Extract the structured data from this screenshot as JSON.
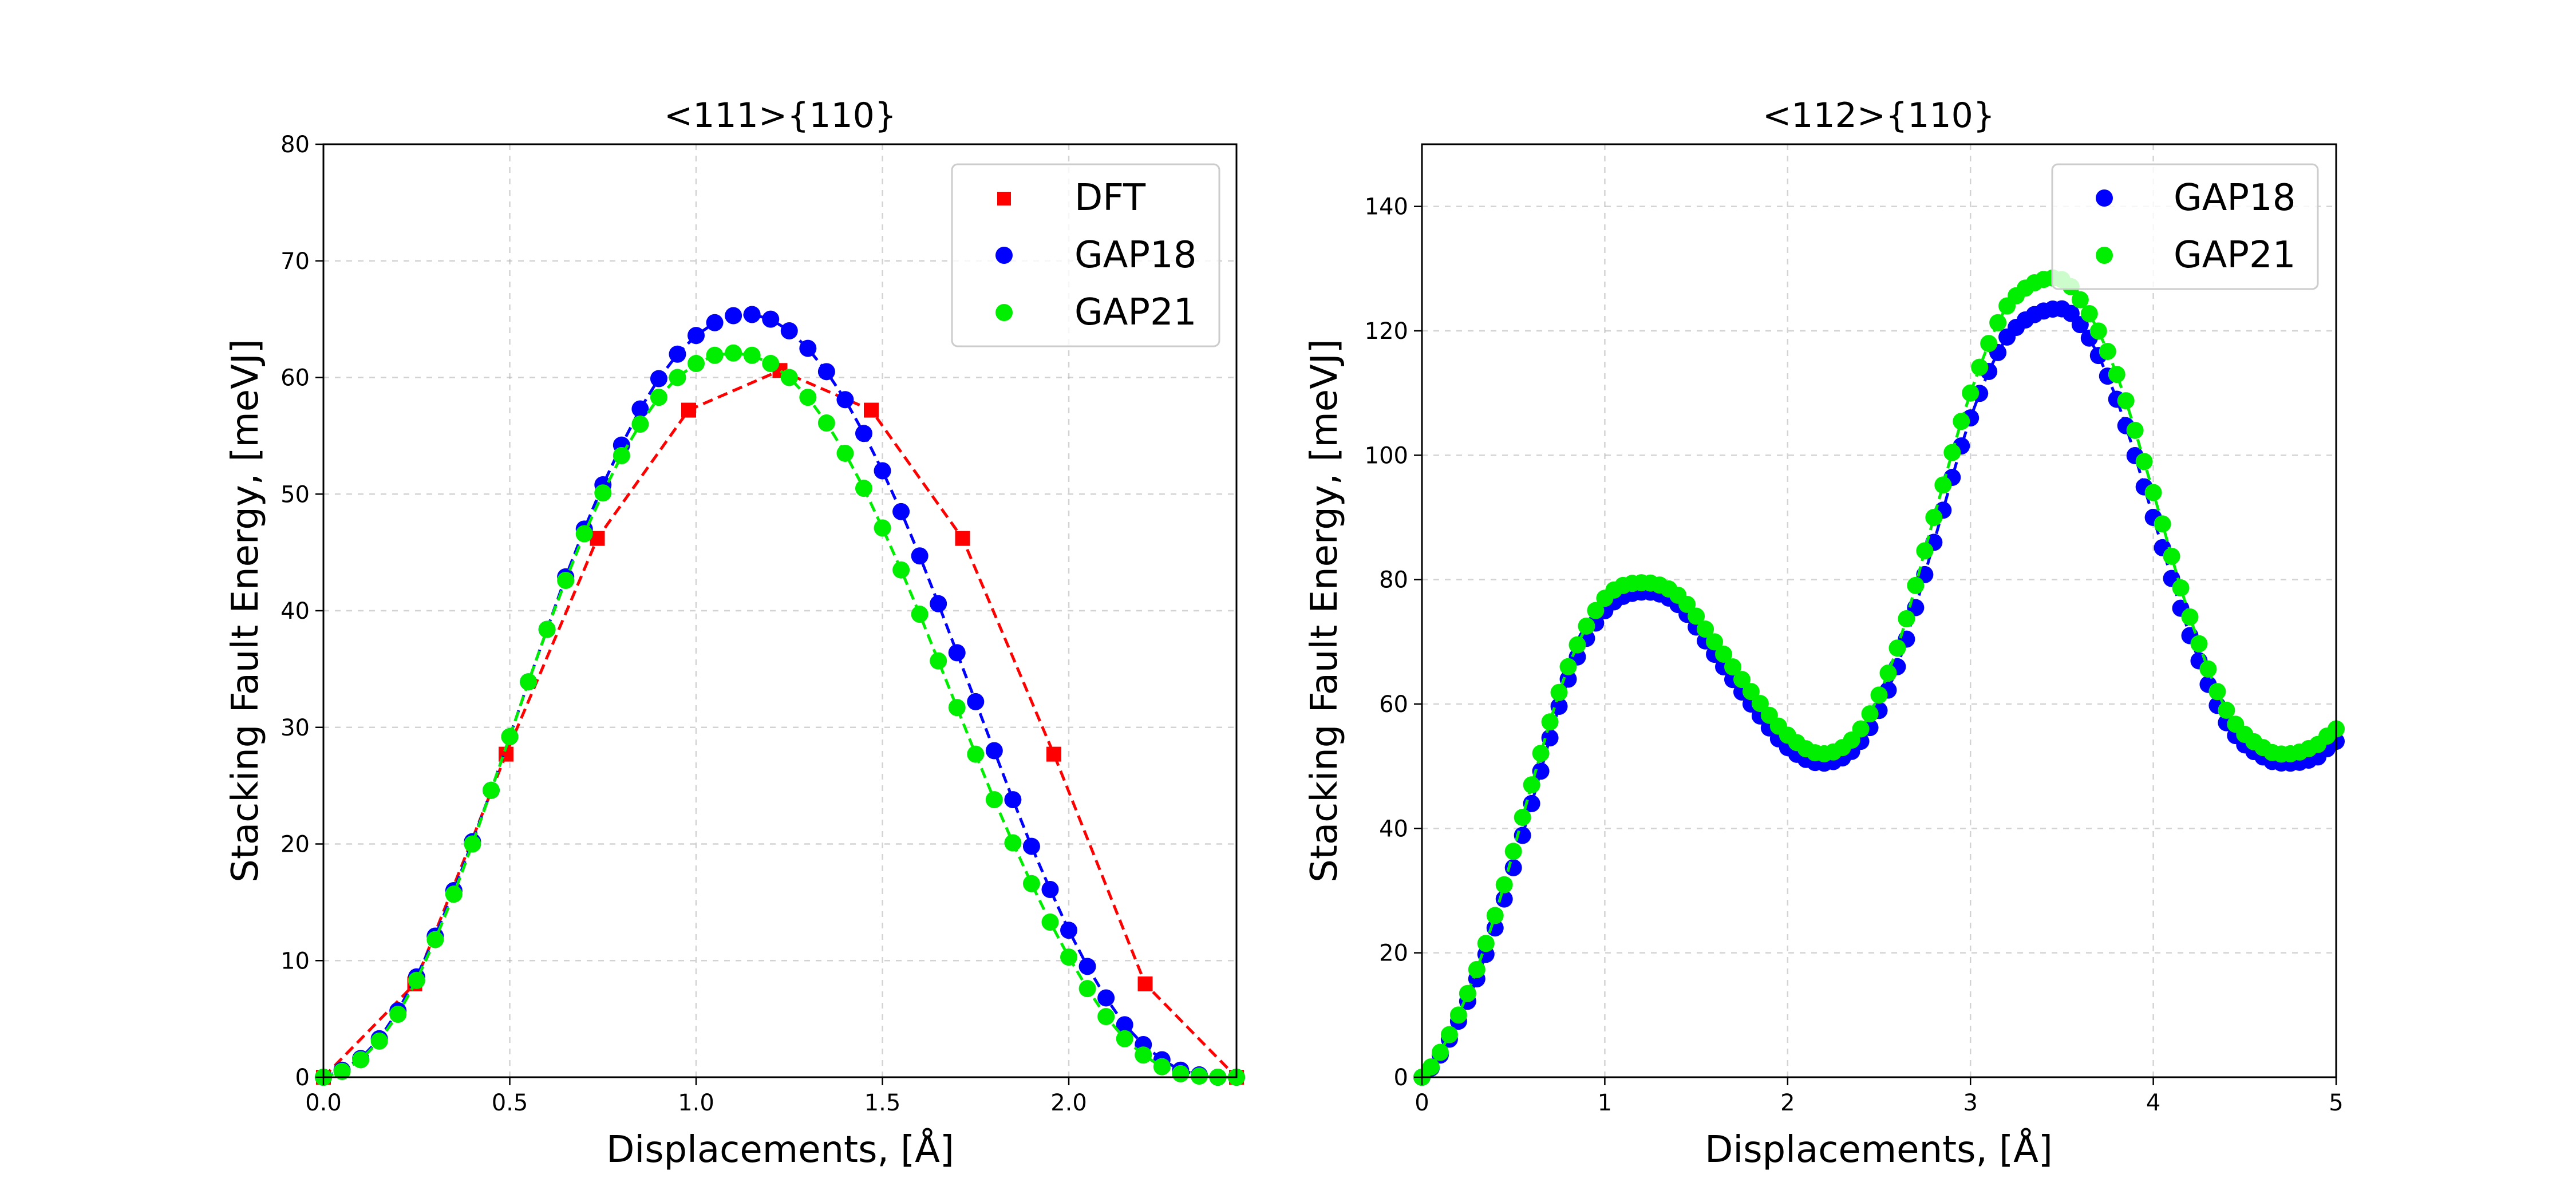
{
  "chart_data": [
    {
      "type": "line",
      "title": "<111>{110}",
      "xlabel": "Displacements, [Å]",
      "ylabel": "Stacking Fault Energy, [meVJ]",
      "xlim": [
        0,
        2.45
      ],
      "ylim": [
        0,
        80
      ],
      "xticks": [
        "0.0",
        "0.5",
        "1.0",
        "1.5",
        "2.0"
      ],
      "xtick_values": [
        0,
        0.5,
        1.0,
        1.5,
        2.0
      ],
      "yticks": [
        "0",
        "10",
        "20",
        "30",
        "40",
        "50",
        "60",
        "70",
        "80"
      ],
      "ytick_values": [
        0,
        10,
        20,
        30,
        40,
        50,
        60,
        70,
        80
      ],
      "grid": true,
      "legend_position": "top-right",
      "series": [
        {
          "name": "DFT",
          "color": "#ff0000",
          "marker": "square",
          "line": "dashed",
          "x": [
            0.0,
            0.245,
            0.49,
            0.735,
            0.98,
            1.225,
            1.47,
            1.715,
            1.96,
            2.205,
            2.45
          ],
          "y": [
            0.0,
            8.0,
            27.7,
            46.2,
            57.2,
            60.6,
            57.2,
            46.2,
            27.7,
            8.0,
            0.0
          ]
        },
        {
          "name": "GAP18",
          "color": "#0000ff",
          "marker": "circle",
          "line": "dashed",
          "x": [
            0.0,
            0.05,
            0.1,
            0.15,
            0.2,
            0.25,
            0.3,
            0.35,
            0.4,
            0.45,
            0.5,
            0.55,
            0.6,
            0.65,
            0.7,
            0.75,
            0.8,
            0.85,
            0.9,
            0.95,
            1.0,
            1.05,
            1.1,
            1.15,
            1.2,
            1.25,
            1.3,
            1.35,
            1.4,
            1.45,
            1.5,
            1.55,
            1.6,
            1.65,
            1.7,
            1.75,
            1.8,
            1.85,
            1.9,
            1.95,
            2.0,
            2.05,
            2.1,
            2.15,
            2.2,
            2.25,
            2.3,
            2.35,
            2.4,
            2.45
          ],
          "y": [
            0.0,
            0.6,
            1.6,
            3.3,
            5.7,
            8.6,
            12.1,
            16.0,
            20.2,
            24.6,
            29.2,
            33.9,
            38.4,
            42.9,
            47.0,
            50.8,
            54.2,
            57.3,
            59.9,
            62.0,
            63.6,
            64.7,
            65.3,
            65.4,
            65.0,
            64.0,
            62.5,
            60.5,
            58.1,
            55.2,
            52.0,
            48.5,
            44.7,
            40.6,
            36.4,
            32.2,
            28.0,
            23.8,
            19.8,
            16.1,
            12.6,
            9.5,
            6.8,
            4.5,
            2.8,
            1.5,
            0.6,
            0.2,
            0.0,
            0.0
          ]
        },
        {
          "name": "GAP21",
          "color": "#00ee00",
          "marker": "circle",
          "line": "dashed",
          "x": [
            0.0,
            0.05,
            0.1,
            0.15,
            0.2,
            0.25,
            0.3,
            0.35,
            0.4,
            0.45,
            0.5,
            0.55,
            0.6,
            0.65,
            0.7,
            0.75,
            0.8,
            0.85,
            0.9,
            0.95,
            1.0,
            1.05,
            1.1,
            1.15,
            1.2,
            1.25,
            1.3,
            1.35,
            1.4,
            1.45,
            1.5,
            1.55,
            1.6,
            1.65,
            1.7,
            1.75,
            1.8,
            1.85,
            1.9,
            1.95,
            2.0,
            2.05,
            2.1,
            2.15,
            2.2,
            2.25,
            2.3,
            2.35,
            2.4,
            2.45
          ],
          "y": [
            0.0,
            0.5,
            1.5,
            3.1,
            5.4,
            8.3,
            11.8,
            15.7,
            20.0,
            24.6,
            29.2,
            33.9,
            38.4,
            42.6,
            46.6,
            50.1,
            53.3,
            56.0,
            58.3,
            60.0,
            61.2,
            61.9,
            62.1,
            61.9,
            61.2,
            60.0,
            58.3,
            56.1,
            53.5,
            50.5,
            47.1,
            43.5,
            39.7,
            35.7,
            31.7,
            27.7,
            23.8,
            20.1,
            16.6,
            13.3,
            10.3,
            7.6,
            5.2,
            3.3,
            1.9,
            0.9,
            0.3,
            0.1,
            0.0,
            0.0
          ]
        }
      ]
    },
    {
      "type": "line",
      "title": "<112>{110}",
      "xlabel": "Displacements, [Å]",
      "ylabel": "Stacking Fault Energy, [meVJ]",
      "xlim": [
        0,
        5
      ],
      "ylim": [
        0,
        150
      ],
      "xticks": [
        "0",
        "1",
        "2",
        "3",
        "4",
        "5"
      ],
      "xtick_values": [
        0,
        1,
        2,
        3,
        4,
        5
      ],
      "yticks": [
        "0",
        "20",
        "40",
        "60",
        "80",
        "100",
        "120",
        "140"
      ],
      "ytick_values": [
        0,
        20,
        40,
        60,
        80,
        100,
        120,
        140
      ],
      "grid": true,
      "legend_position": "top-right",
      "series": [
        {
          "name": "GAP18",
          "color": "#0000ff",
          "marker": "circle",
          "line": "dashed",
          "anchors_x": [
            0.0,
            0.2,
            0.4,
            0.6,
            0.8,
            1.0,
            1.2,
            1.4,
            1.6,
            1.8,
            2.0,
            2.2,
            2.4,
            2.6,
            2.8,
            3.0,
            3.2,
            3.45,
            3.6,
            3.8,
            4.0,
            4.2,
            4.4,
            4.6,
            4.75,
            4.9,
            5.0
          ],
          "anchors_y": [
            0.0,
            9.0,
            24.0,
            44.0,
            64.0,
            75.0,
            78.0,
            76.0,
            68.0,
            60.0,
            53.0,
            50.5,
            54.0,
            66.0,
            86.0,
            106.0,
            119.0,
            123.5,
            121.0,
            109.0,
            90.0,
            71.0,
            57.0,
            51.5,
            50.5,
            51.5,
            54.0
          ]
        },
        {
          "name": "GAP21",
          "color": "#00ee00",
          "marker": "circle",
          "line": "dashed",
          "anchors_x": [
            0.0,
            0.2,
            0.4,
            0.6,
            0.8,
            1.0,
            1.2,
            1.4,
            1.6,
            1.8,
            2.0,
            2.2,
            2.4,
            2.6,
            2.8,
            3.0,
            3.2,
            3.45,
            3.6,
            3.8,
            4.0,
            4.2,
            4.4,
            4.6,
            4.75,
            4.9,
            5.0
          ],
          "anchors_y": [
            0.0,
            10.0,
            26.0,
            47.0,
            66.0,
            77.0,
            79.5,
            77.5,
            70.0,
            62.0,
            55.0,
            52.0,
            56.0,
            69.0,
            90.0,
            110.0,
            124.0,
            128.5,
            125.0,
            113.0,
            94.0,
            74.0,
            59.0,
            53.0,
            52.0,
            53.5,
            56.0
          ]
        }
      ]
    }
  ]
}
